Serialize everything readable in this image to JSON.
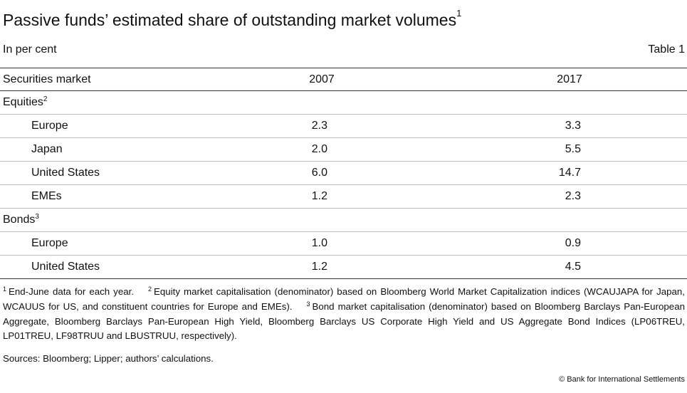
{
  "title": "Passive funds’ estimated share of outstanding market volumes",
  "title_note": "1",
  "units": "In per cent",
  "table_number": "Table 1",
  "chart_data": {
    "type": "table",
    "columns": [
      "Securities market",
      "2007",
      "2017"
    ],
    "groups": [
      {
        "label": "Equities",
        "note": "2",
        "rows": [
          {
            "label": "Europe",
            "values": [
              "2.3",
              "3.3"
            ]
          },
          {
            "label": "Japan",
            "values": [
              "2.0",
              "5.5"
            ]
          },
          {
            "label": "United States",
            "values": [
              "6.0",
              "14.7"
            ]
          },
          {
            "label": "EMEs",
            "values": [
              "1.2",
              "2.3"
            ]
          }
        ]
      },
      {
        "label": "Bonds",
        "note": "3",
        "rows": [
          {
            "label": "Europe",
            "values": [
              "1.0",
              "0.9"
            ]
          },
          {
            "label": "United States",
            "values": [
              "1.2",
              "4.5"
            ]
          }
        ]
      }
    ]
  },
  "footnotes": [
    {
      "num": "1",
      "text": "End-June data for each year."
    },
    {
      "num": "2",
      "text": "Equity market capitalisation (denominator) based on Bloomberg World Market Capitalization indices (WCAUJAPA for Japan, WCAUUS for US, and constituent countries for Europe and EMEs)."
    },
    {
      "num": "3",
      "text": "Bond market capitalisation (denominator) based on Bloomberg Barclays Pan-European Aggregate, Bloomberg Barclays Pan-European High Yield, Bloomberg Barclays US Corporate High Yield and US Aggregate Bond Indices (LP06TREU, LP01TREU, LF98TRUU and LBUSTRUU, respectively)."
    }
  ],
  "sources": "Sources: Bloomberg; Lipper; authors’ calculations.",
  "copyright": "© Bank for International Settlements"
}
